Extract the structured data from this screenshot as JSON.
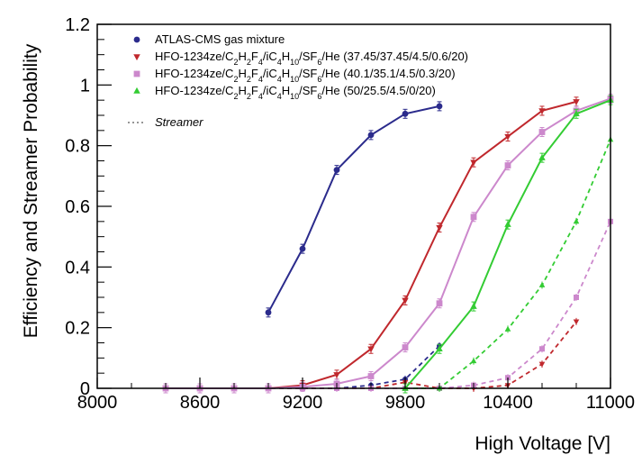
{
  "chart_data": {
    "type": "line",
    "xlabel": "High Voltage [V]",
    "ylabel": "Efficiency and Streamer Probability",
    "xlim": [
      8000,
      11000
    ],
    "ylim": [
      0,
      1.2
    ],
    "x_ticks": [
      "8000",
      "8600",
      "9200",
      "9800",
      "10400",
      "11000"
    ],
    "y_ticks": [
      "0",
      "0.2",
      "0.4",
      "0.6",
      "0.8",
      "1",
      "1.2"
    ],
    "grid": false,
    "legend_position": "top-left",
    "streamer_legend": "Streamer",
    "series": [
      {
        "name": "ATLAS-CMS gas mixture",
        "color": "#2b2b8c",
        "marker": "circle",
        "efficiency": {
          "x": [
            9000,
            9200,
            9400,
            9600,
            9800,
            10000
          ],
          "y": [
            0.25,
            0.46,
            0.72,
            0.835,
            0.905,
            0.93
          ]
        },
        "streamer": {
          "x": [
            8400,
            8600,
            8800,
            9000,
            9200,
            9400,
            9600,
            9800,
            10000
          ],
          "y": [
            0.0,
            0.0,
            0.0,
            0.0,
            0.0,
            0.0,
            0.01,
            0.03,
            0.14
          ]
        }
      },
      {
        "name": "HFO-1234ze/C2H2F4/iC4H10/SF6/He (37.45/37.45/4.5/0.6/20)",
        "color": "#c0282d",
        "marker": "triangle-down",
        "efficiency": {
          "x": [
            8400,
            8600,
            8800,
            9000,
            9200,
            9400,
            9600,
            9800,
            10000,
            10200,
            10400,
            10600,
            10800
          ],
          "y": [
            0.0,
            0.0,
            0.0,
            0.0,
            0.01,
            0.045,
            0.13,
            0.29,
            0.53,
            0.745,
            0.83,
            0.915,
            0.945
          ]
        },
        "streamer": {
          "x": [
            8400,
            8600,
            8800,
            9000,
            9200,
            9400,
            9600,
            9800,
            10000,
            10200,
            10400,
            10600,
            10800
          ],
          "y": [
            0.0,
            0.0,
            0.0,
            0.0,
            0.0,
            0.0,
            0.0,
            0.02,
            0.0,
            0.0,
            0.01,
            0.08,
            0.22
          ]
        }
      },
      {
        "name": "HFO-1234ze/C2H2F4/iC4H10/SF6/He (40.1/35.1/4.5/0.3/20)",
        "color": "#cc88cc",
        "marker": "square",
        "efficiency": {
          "x": [
            8400,
            8600,
            8800,
            9000,
            9200,
            9400,
            9600,
            9800,
            10000,
            10200,
            10400,
            10600,
            10800,
            11000
          ],
          "y": [
            0.0,
            0.0,
            0.0,
            0.0,
            0.005,
            0.015,
            0.04,
            0.135,
            0.28,
            0.565,
            0.735,
            0.845,
            0.915,
            0.955
          ]
        },
        "streamer": {
          "x": [
            8400,
            8600,
            8800,
            9000,
            9200,
            9400,
            9600,
            9800,
            10000,
            10200,
            10400,
            10600,
            10800,
            11000
          ],
          "y": [
            0.0,
            0.0,
            0.0,
            0.0,
            0.0,
            0.0,
            0.0,
            0.0,
            0.0,
            0.01,
            0.035,
            0.13,
            0.3,
            0.55
          ]
        }
      },
      {
        "name": "HFO-1234ze/C2H2F4/iC4H10/SF6/He (50/25.5/4.5/0/20)",
        "color": "#33cc33",
        "marker": "triangle-up",
        "efficiency": {
          "x": [
            9800,
            10000,
            10200,
            10400,
            10600,
            10800,
            11000
          ],
          "y": [
            0.0,
            0.13,
            0.27,
            0.54,
            0.76,
            0.905,
            0.95
          ]
        },
        "streamer": {
          "x": [
            9800,
            10000,
            10200,
            10400,
            10600,
            10800,
            11000
          ],
          "y": [
            0.0,
            0.0,
            0.09,
            0.195,
            0.34,
            0.55,
            0.82
          ]
        }
      }
    ]
  },
  "legend": {
    "entries": [
      {
        "base": "ATLAS-CMS gas mixture",
        "rich": false,
        "values": ""
      },
      {
        "base": "HFO-1234ze/C2H2F4/iC4H10/SF6/He",
        "rich": true,
        "values": "(37.45/37.45/4.5/0.6/20)"
      },
      {
        "base": "HFO-1234ze/C2H2F4/iC4H10/SF6/He",
        "rich": true,
        "values": "(40.1/35.1/4.5/0.3/20)"
      },
      {
        "base": "HFO-1234ze/C2H2F4/iC4H10/SF6/He",
        "rich": true,
        "values": "(50/25.5/4.5/0/20)"
      }
    ]
  }
}
